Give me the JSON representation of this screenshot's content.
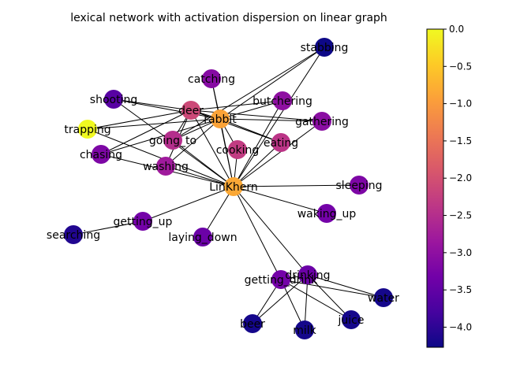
{
  "title": "lexical network with activation dispersion on linear graph",
  "colorbar": {
    "min": -4.27,
    "max": 0.0,
    "colormap": [
      "#0d0887",
      "#46039f",
      "#7201a8",
      "#9c179e",
      "#bd3786",
      "#d8576b",
      "#ed7953",
      "#fb9f3a",
      "#fdca26",
      "#f0f921"
    ],
    "ticks": [
      {
        "value": 0.0,
        "label": "0.0"
      },
      {
        "value": -0.5,
        "label": "−0.5"
      },
      {
        "value": -1.0,
        "label": "−1.0"
      },
      {
        "value": -1.5,
        "label": "−1.5"
      },
      {
        "value": -2.0,
        "label": "−2.0"
      },
      {
        "value": -2.5,
        "label": "−2.5"
      },
      {
        "value": -3.0,
        "label": "−3.0"
      },
      {
        "value": -3.5,
        "label": "−3.5"
      },
      {
        "value": -4.0,
        "label": "−4.0"
      }
    ]
  },
  "nodes": [
    {
      "id": "stabbing",
      "label": "stabbing",
      "activation": -4.27
    },
    {
      "id": "catching",
      "label": "catching",
      "activation": -3.1
    },
    {
      "id": "shooting",
      "label": "shooting",
      "activation": -3.6
    },
    {
      "id": "deer",
      "label": "deer",
      "activation": -2.1
    },
    {
      "id": "rabbit",
      "label": "rabbit",
      "activation": -0.9
    },
    {
      "id": "butchering",
      "label": "butchering",
      "activation": -3.0
    },
    {
      "id": "gathering",
      "label": "gathering",
      "activation": -3.05
    },
    {
      "id": "trapping",
      "label": "trapping",
      "activation": 0.0
    },
    {
      "id": "going_to",
      "label": "going_to",
      "activation": -2.5
    },
    {
      "id": "cooking",
      "label": "cooking",
      "activation": -2.3
    },
    {
      "id": "eating",
      "label": "eating",
      "activation": -2.4
    },
    {
      "id": "chasing",
      "label": "chasing",
      "activation": -3.2
    },
    {
      "id": "washing",
      "label": "washing",
      "activation": -2.8
    },
    {
      "id": "LinKhern",
      "label": "LinKhern",
      "activation": -0.85
    },
    {
      "id": "sleeping",
      "label": "sleeping",
      "activation": -3.2
    },
    {
      "id": "waking_up",
      "label": "waking_up",
      "activation": -3.3
    },
    {
      "id": "getting_up",
      "label": "getting_up",
      "activation": -3.3
    },
    {
      "id": "searching",
      "label": "searching",
      "activation": -4.1
    },
    {
      "id": "laying_down",
      "label": "laying_down",
      "activation": -3.4
    },
    {
      "id": "drinking",
      "label": "drinking",
      "activation": -3.4
    },
    {
      "id": "getting_drink",
      "label": "getting_drink",
      "activation": -3.3
    },
    {
      "id": "water",
      "label": "water",
      "activation": -4.2
    },
    {
      "id": "beer",
      "label": "beer",
      "activation": -4.2
    },
    {
      "id": "milk",
      "label": "milk",
      "activation": -4.2
    },
    {
      "id": "juice",
      "label": "juice",
      "activation": -4.2
    }
  ],
  "edges": [
    [
      "LinKhern",
      "stabbing"
    ],
    [
      "LinKhern",
      "catching"
    ],
    [
      "LinKhern",
      "shooting"
    ],
    [
      "LinKhern",
      "deer"
    ],
    [
      "LinKhern",
      "rabbit"
    ],
    [
      "LinKhern",
      "butchering"
    ],
    [
      "LinKhern",
      "gathering"
    ],
    [
      "LinKhern",
      "trapping"
    ],
    [
      "LinKhern",
      "going_to"
    ],
    [
      "LinKhern",
      "cooking"
    ],
    [
      "LinKhern",
      "eating"
    ],
    [
      "LinKhern",
      "chasing"
    ],
    [
      "LinKhern",
      "washing"
    ],
    [
      "LinKhern",
      "sleeping"
    ],
    [
      "LinKhern",
      "waking_up"
    ],
    [
      "LinKhern",
      "getting_up"
    ],
    [
      "LinKhern",
      "laying_down"
    ],
    [
      "LinKhern",
      "drinking"
    ],
    [
      "LinKhern",
      "getting_drink"
    ],
    [
      "getting_up",
      "searching"
    ],
    [
      "deer",
      "shooting"
    ],
    [
      "deer",
      "trapping"
    ],
    [
      "deer",
      "chasing"
    ],
    [
      "deer",
      "going_to"
    ],
    [
      "deer",
      "washing"
    ],
    [
      "deer",
      "butchering"
    ],
    [
      "deer",
      "gathering"
    ],
    [
      "deer",
      "eating"
    ],
    [
      "deer",
      "rabbit"
    ],
    [
      "rabbit",
      "stabbing"
    ],
    [
      "rabbit",
      "catching"
    ],
    [
      "rabbit",
      "shooting"
    ],
    [
      "rabbit",
      "butchering"
    ],
    [
      "rabbit",
      "gathering"
    ],
    [
      "rabbit",
      "trapping"
    ],
    [
      "rabbit",
      "going_to"
    ],
    [
      "rabbit",
      "cooking"
    ],
    [
      "rabbit",
      "eating"
    ],
    [
      "rabbit",
      "chasing"
    ],
    [
      "rabbit",
      "washing"
    ],
    [
      "going_to",
      "stabbing"
    ],
    [
      "drinking",
      "water"
    ],
    [
      "drinking",
      "beer"
    ],
    [
      "drinking",
      "milk"
    ],
    [
      "drinking",
      "juice"
    ],
    [
      "getting_drink",
      "water"
    ],
    [
      "getting_drink",
      "beer"
    ],
    [
      "getting_drink",
      "milk"
    ],
    [
      "getting_drink",
      "juice"
    ],
    [
      "drinking",
      "getting_drink"
    ]
  ]
}
